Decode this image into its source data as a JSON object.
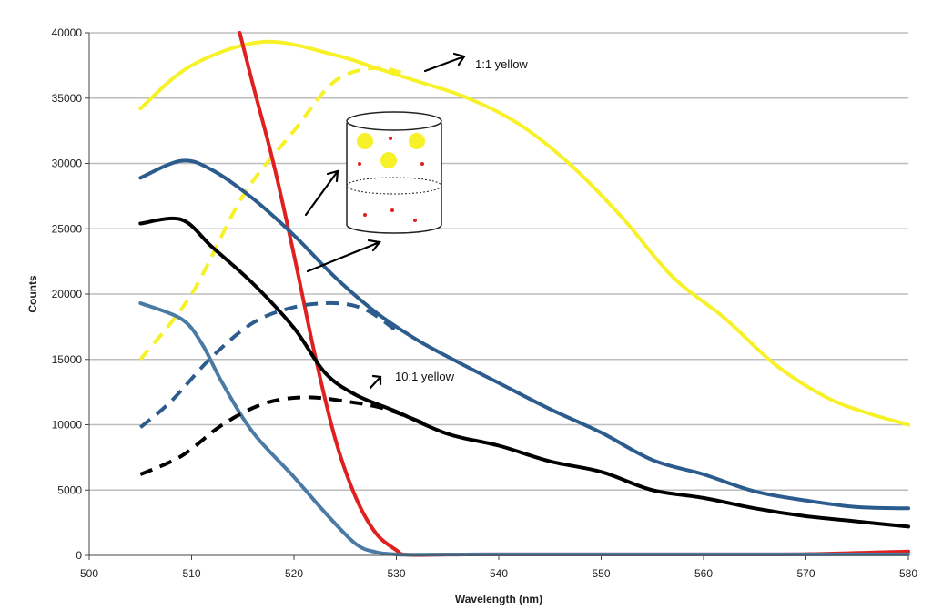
{
  "chart_data": {
    "type": "line",
    "title": "",
    "xlabel": "Wavelength (nm)",
    "ylabel": "Counts",
    "xlim": [
      500,
      580
    ],
    "ylim": [
      0,
      40000
    ],
    "x_ticks": [
      "500",
      "510",
      "520",
      "530",
      "540",
      "550",
      "560",
      "570",
      "580"
    ],
    "y_ticks": [
      "0",
      "5000",
      "10000",
      "15000",
      "20000",
      "25000",
      "30000",
      "35000",
      "40000"
    ],
    "grid": "horizontal",
    "series": [
      {
        "name": "yellow-solid",
        "color": "#f7f12a",
        "dashed": false,
        "x": [
          505,
          510,
          517,
          524,
          528,
          532,
          537,
          542,
          547,
          552,
          557,
          562,
          567,
          572,
          576,
          580
        ],
        "y": [
          34200,
          37500,
          39300,
          38300,
          37300,
          36300,
          35000,
          33000,
          29900,
          25900,
          21300,
          18200,
          14600,
          12100,
          10900,
          10000
        ]
      },
      {
        "name": "yellow-dashed",
        "color": "#f7f12a",
        "dashed": true,
        "x": [
          505,
          510,
          515,
          520,
          524,
          528,
          531
        ],
        "y": [
          15000,
          20000,
          27500,
          32500,
          36300,
          37300,
          36800
        ]
      },
      {
        "name": "red",
        "color": "#e02020",
        "dashed": false,
        "x": [
          514.7,
          516,
          518,
          520,
          522,
          524,
          526,
          528,
          530,
          531,
          535,
          540,
          550,
          560,
          570,
          580
        ],
        "y": [
          40000,
          36000,
          30000,
          23000,
          15500,
          9000,
          4500,
          1700,
          400,
          50,
          60,
          80,
          80,
          80,
          100,
          300
        ]
      },
      {
        "name": "blue-solid",
        "color": "#2c5c8e",
        "dashed": false,
        "x": [
          505,
          509,
          512,
          516,
          520,
          524,
          528,
          532,
          536,
          540,
          545,
          550,
          555,
          560,
          565,
          570,
          575,
          580
        ],
        "y": [
          28900,
          30200,
          29500,
          27300,
          24500,
          21300,
          18600,
          16500,
          14800,
          13200,
          11200,
          9400,
          7300,
          6200,
          4900,
          4200,
          3700,
          3600
        ]
      },
      {
        "name": "blue-dashed",
        "color": "#2c5c8e",
        "dashed": true,
        "x": [
          505,
          508,
          512,
          516,
          520,
          524,
          527,
          530
        ],
        "y": [
          9800,
          11800,
          15200,
          17800,
          19000,
          19300,
          18800,
          17200
        ]
      },
      {
        "name": "steel-blue",
        "color": "#4a7ba5",
        "dashed": false,
        "x": [
          505,
          509,
          511,
          513,
          516,
          520,
          523,
          526,
          528,
          530,
          532,
          540,
          550,
          560,
          570,
          580
        ],
        "y": [
          19300,
          18100,
          16200,
          13200,
          9400,
          6000,
          3300,
          900,
          250,
          80,
          50,
          80,
          80,
          80,
          80,
          80
        ]
      },
      {
        "name": "black-solid",
        "color": "#000000",
        "dashed": false,
        "x": [
          505,
          509,
          512,
          516,
          520,
          523,
          526,
          530,
          535,
          540,
          545,
          550,
          555,
          560,
          565,
          570,
          575,
          580
        ],
        "y": [
          25400,
          25700,
          23600,
          20800,
          17400,
          14000,
          12300,
          11000,
          9300,
          8400,
          7200,
          6400,
          5000,
          4400,
          3600,
          3000,
          2600,
          2200
        ]
      },
      {
        "name": "black-dashed",
        "color": "#000000",
        "dashed": true,
        "x": [
          505,
          509,
          513,
          517,
          521,
          525,
          529,
          533
        ],
        "y": [
          6200,
          7600,
          10000,
          11600,
          12100,
          11800,
          11200,
          10000
        ]
      }
    ],
    "annotations": [
      {
        "text": "1:1 yellow"
      },
      {
        "text": "10:1 yellow"
      }
    ]
  }
}
